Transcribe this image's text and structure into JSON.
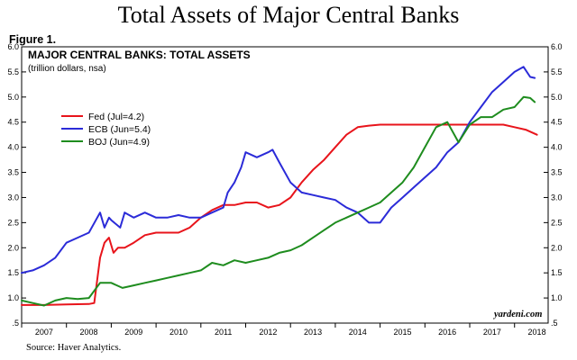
{
  "page": {
    "title": "Total Assets of Major Central Banks",
    "figure_label": "Figure 1.",
    "source": "Source: Haver Analytics."
  },
  "chart_data": {
    "type": "line",
    "title": "MAJOR CENTRAL BANKS: TOTAL ASSETS",
    "subtitle": "(trillion dollars, nsa)",
    "credit": "yardeni.com",
    "ylim": [
      0.5,
      6.0
    ],
    "y_ticks": [
      0.5,
      1.0,
      1.5,
      2.0,
      2.5,
      3.0,
      3.5,
      4.0,
      4.5,
      5.0,
      5.5,
      6.0
    ],
    "y_tick_labels": [
      ".5",
      "1.0",
      "1.5",
      "2.0",
      "2.5",
      "3.0",
      "3.5",
      "4.0",
      "4.5",
      "5.0",
      "5.5",
      "6.0"
    ],
    "xlim": [
      2007.0,
      2018.75
    ],
    "x_ticks": [
      "2007",
      "2008",
      "2009",
      "2010",
      "2011",
      "2012",
      "2013",
      "2014",
      "2015",
      "2016",
      "2017",
      "2018"
    ],
    "grid": false,
    "legend_position": "upper-left",
    "series": [
      {
        "name": "Fed (Jul=4.2)",
        "color": "#e8141b",
        "x": [
          2007.0,
          2007.5,
          2008.0,
          2008.5,
          2008.62,
          2008.75,
          2008.85,
          2008.95,
          2009.05,
          2009.15,
          2009.3,
          2009.5,
          2009.75,
          2010.0,
          2010.25,
          2010.5,
          2010.75,
          2011.0,
          2011.25,
          2011.5,
          2011.75,
          2012.0,
          2012.25,
          2012.5,
          2012.75,
          2013.0,
          2013.25,
          2013.5,
          2013.75,
          2014.0,
          2014.25,
          2014.5,
          2014.75,
          2015.0,
          2015.5,
          2016.0,
          2016.5,
          2017.0,
          2017.5,
          2017.75,
          2018.0,
          2018.25,
          2018.5
        ],
        "values": [
          0.86,
          0.86,
          0.87,
          0.88,
          0.9,
          1.8,
          2.1,
          2.2,
          1.9,
          2.0,
          2.0,
          2.1,
          2.25,
          2.3,
          2.3,
          2.3,
          2.4,
          2.6,
          2.75,
          2.85,
          2.85,
          2.9,
          2.9,
          2.8,
          2.85,
          3.0,
          3.3,
          3.55,
          3.75,
          4.0,
          4.25,
          4.4,
          4.43,
          4.45,
          4.45,
          4.45,
          4.45,
          4.45,
          4.45,
          4.45,
          4.4,
          4.35,
          4.25
        ]
      },
      {
        "name": "ECB (Jun=5.4)",
        "color": "#2b2bd8",
        "x": [
          2007.0,
          2007.25,
          2007.5,
          2007.75,
          2008.0,
          2008.25,
          2008.5,
          2008.75,
          2008.85,
          2008.95,
          2009.0,
          2009.2,
          2009.3,
          2009.5,
          2009.75,
          2010.0,
          2010.25,
          2010.5,
          2010.75,
          2011.0,
          2011.25,
          2011.5,
          2011.6,
          2011.75,
          2011.9,
          2012.0,
          2012.25,
          2012.5,
          2012.6,
          2012.75,
          2013.0,
          2013.25,
          2013.5,
          2013.75,
          2014.0,
          2014.25,
          2014.5,
          2014.75,
          2015.0,
          2015.25,
          2015.5,
          2015.75,
          2016.0,
          2016.25,
          2016.5,
          2016.75,
          2017.0,
          2017.25,
          2017.5,
          2017.75,
          2018.0,
          2018.2,
          2018.35,
          2018.45
        ],
        "values": [
          1.5,
          1.55,
          1.65,
          1.8,
          2.1,
          2.2,
          2.3,
          2.7,
          2.4,
          2.6,
          2.55,
          2.4,
          2.7,
          2.6,
          2.7,
          2.6,
          2.6,
          2.65,
          2.6,
          2.6,
          2.7,
          2.8,
          3.1,
          3.3,
          3.6,
          3.9,
          3.8,
          3.9,
          3.95,
          3.7,
          3.3,
          3.1,
          3.05,
          3.0,
          2.95,
          2.8,
          2.7,
          2.5,
          2.5,
          2.8,
          3.0,
          3.2,
          3.4,
          3.6,
          3.9,
          4.1,
          4.5,
          4.8,
          5.1,
          5.3,
          5.5,
          5.6,
          5.4,
          5.38
        ]
      },
      {
        "name": "BOJ (Jun=4.9)",
        "color": "#1e8c1e",
        "x": [
          2007.0,
          2007.25,
          2007.5,
          2007.75,
          2008.0,
          2008.25,
          2008.5,
          2008.75,
          2009.0,
          2009.25,
          2009.5,
          2009.75,
          2010.0,
          2010.25,
          2010.5,
          2010.75,
          2011.0,
          2011.25,
          2011.5,
          2011.75,
          2012.0,
          2012.25,
          2012.5,
          2012.75,
          2013.0,
          2013.25,
          2013.5,
          2013.75,
          2014.0,
          2014.25,
          2014.5,
          2014.75,
          2015.0,
          2015.25,
          2015.5,
          2015.75,
          2016.0,
          2016.25,
          2016.5,
          2016.75,
          2017.0,
          2017.25,
          2017.5,
          2017.75,
          2018.0,
          2018.2,
          2018.35,
          2018.45
        ],
        "values": [
          0.95,
          0.9,
          0.85,
          0.95,
          1.0,
          0.98,
          1.0,
          1.3,
          1.3,
          1.2,
          1.25,
          1.3,
          1.35,
          1.4,
          1.45,
          1.5,
          1.55,
          1.7,
          1.65,
          1.75,
          1.7,
          1.75,
          1.8,
          1.9,
          1.95,
          2.05,
          2.2,
          2.35,
          2.5,
          2.6,
          2.7,
          2.8,
          2.9,
          3.1,
          3.3,
          3.6,
          4.0,
          4.4,
          4.5,
          4.1,
          4.45,
          4.6,
          4.6,
          4.75,
          4.8,
          5.0,
          4.98,
          4.9
        ]
      }
    ]
  }
}
